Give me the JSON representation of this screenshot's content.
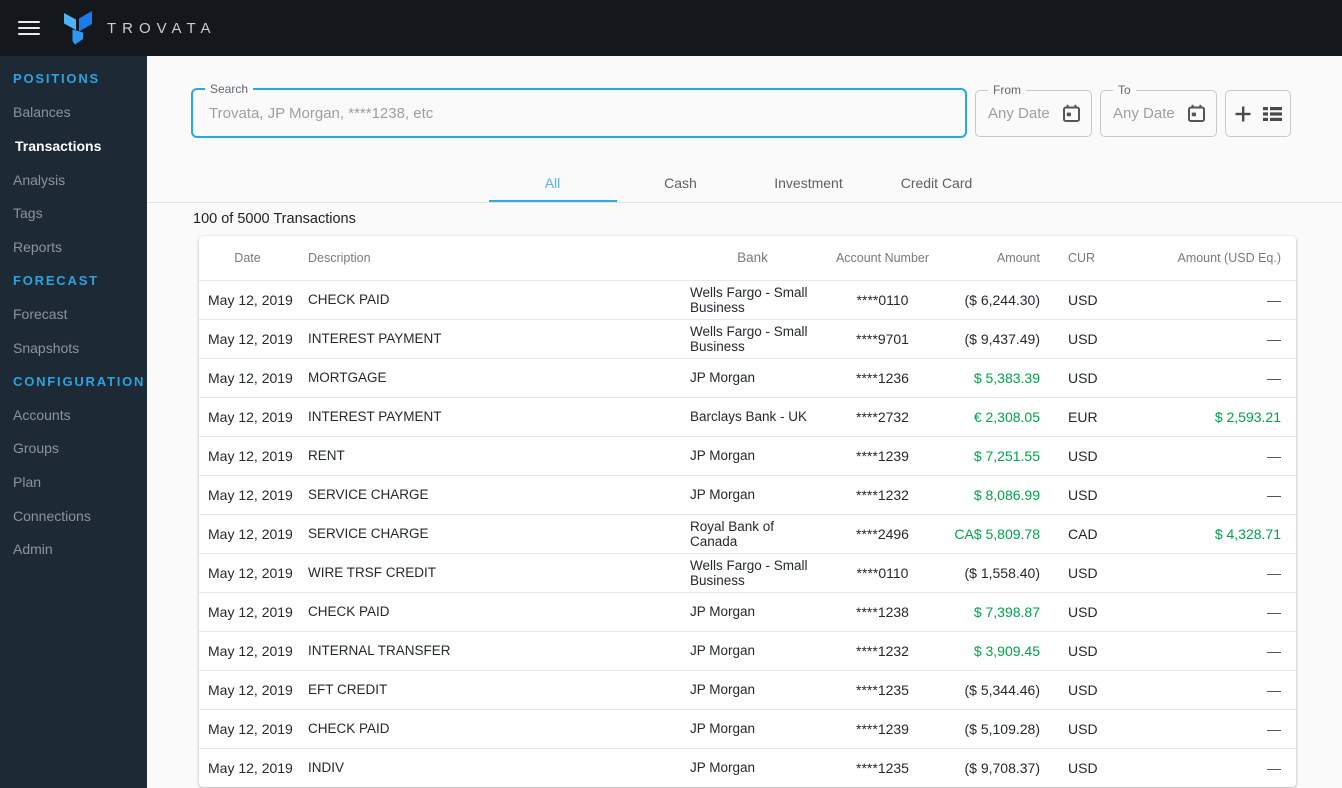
{
  "topbar": {
    "brand": "TROVATA"
  },
  "sidebar": {
    "items": [
      {
        "type": "header",
        "label": "POSITIONS"
      },
      {
        "type": "item",
        "label": "Balances"
      },
      {
        "type": "item",
        "label": "Transactions",
        "active": true
      },
      {
        "type": "item",
        "label": "Analysis"
      },
      {
        "type": "item",
        "label": "Tags"
      },
      {
        "type": "item",
        "label": "Reports"
      },
      {
        "type": "header",
        "label": "FORECAST"
      },
      {
        "type": "item",
        "label": "Forecast"
      },
      {
        "type": "item",
        "label": "Snapshots"
      },
      {
        "type": "header",
        "label": "CONFIGURATION"
      },
      {
        "type": "item",
        "label": "Accounts"
      },
      {
        "type": "item",
        "label": "Groups"
      },
      {
        "type": "item",
        "label": "Plan"
      },
      {
        "type": "item",
        "label": "Connections"
      },
      {
        "type": "item",
        "label": "Admin"
      }
    ]
  },
  "filters": {
    "search_label": "Search",
    "search_placeholder": "Trovata, JP Morgan, ****1238, etc",
    "from_label": "From",
    "from_value": "Any Date",
    "to_label": "To",
    "to_value": "Any Date"
  },
  "tabs": [
    {
      "label": "All",
      "active": true
    },
    {
      "label": "Cash",
      "active": false
    },
    {
      "label": "Investment",
      "active": false
    },
    {
      "label": "Credit Card",
      "active": false
    }
  ],
  "summary": "100 of 5000 Transactions",
  "table": {
    "columns": [
      "Date",
      "Description",
      "Bank",
      "Account Number",
      "Amount",
      "CUR",
      "Amount (USD Eq.)"
    ],
    "rows": [
      {
        "date": "May 12, 2019",
        "description": "CHECK PAID",
        "bank": "Wells Fargo - Small Business",
        "account": "****0110",
        "amount": "($ 6,244.30)",
        "positive": false,
        "cur": "USD",
        "usd_eq": "—"
      },
      {
        "date": "May 12, 2019",
        "description": "INTEREST PAYMENT",
        "bank": "Wells Fargo - Small Business",
        "account": "****9701",
        "amount": "($ 9,437.49)",
        "positive": false,
        "cur": "USD",
        "usd_eq": "—"
      },
      {
        "date": "May 12, 2019",
        "description": "MORTGAGE",
        "bank": "JP Morgan",
        "account": "****1236",
        "amount": "$ 5,383.39",
        "positive": true,
        "cur": "USD",
        "usd_eq": "—"
      },
      {
        "date": "May 12, 2019",
        "description": "INTEREST PAYMENT",
        "bank": "Barclays Bank - UK",
        "account": "****2732",
        "amount": "€ 2,308.05",
        "positive": true,
        "cur": "EUR",
        "usd_eq": "$ 2,593.21"
      },
      {
        "date": "May 12, 2019",
        "description": "RENT",
        "bank": "JP Morgan",
        "account": "****1239",
        "amount": "$ 7,251.55",
        "positive": true,
        "cur": "USD",
        "usd_eq": "—"
      },
      {
        "date": "May 12, 2019",
        "description": "SERVICE CHARGE",
        "bank": "JP Morgan",
        "account": "****1232",
        "amount": "$ 8,086.99",
        "positive": true,
        "cur": "USD",
        "usd_eq": "—"
      },
      {
        "date": "May 12, 2019",
        "description": "SERVICE CHARGE",
        "bank": "Royal Bank of Canada",
        "account": "****2496",
        "amount": "CA$ 5,809.78",
        "positive": true,
        "cur": "CAD",
        "usd_eq": "$ 4,328.71"
      },
      {
        "date": "May 12, 2019",
        "description": "WIRE TRSF CREDIT",
        "bank": "Wells Fargo - Small Business",
        "account": "****0110",
        "amount": "($ 1,558.40)",
        "positive": false,
        "cur": "USD",
        "usd_eq": "—"
      },
      {
        "date": "May 12, 2019",
        "description": "CHECK PAID",
        "bank": "JP Morgan",
        "account": "****1238",
        "amount": "$ 7,398.87",
        "positive": true,
        "cur": "USD",
        "usd_eq": "—"
      },
      {
        "date": "May 12, 2019",
        "description": "INTERNAL TRANSFER",
        "bank": "JP Morgan",
        "account": "****1232",
        "amount": "$ 3,909.45",
        "positive": true,
        "cur": "USD",
        "usd_eq": "—"
      },
      {
        "date": "May 12, 2019",
        "description": "EFT CREDIT",
        "bank": "JP Morgan",
        "account": "****1235",
        "amount": "($ 5,344.46)",
        "positive": false,
        "cur": "USD",
        "usd_eq": "—"
      },
      {
        "date": "May 12, 2019",
        "description": "CHECK PAID",
        "bank": "JP Morgan",
        "account": "****1239",
        "amount": "($ 5,109.28)",
        "positive": false,
        "cur": "USD",
        "usd_eq": "—"
      },
      {
        "date": "May 12, 2019",
        "description": "INDIV",
        "bank": "JP Morgan",
        "account": "****1235",
        "amount": "($ 9,708.37)",
        "positive": false,
        "cur": "USD",
        "usd_eq": "—"
      }
    ]
  },
  "colors": {
    "accent_blue": "#29a9e2",
    "tab_active_blue": "#4cb8ea",
    "positive_green": "#00a34a",
    "topbar_bg": "#14181d",
    "sidebar_bg": "#1d2935",
    "main_bg": "#fafafa"
  }
}
